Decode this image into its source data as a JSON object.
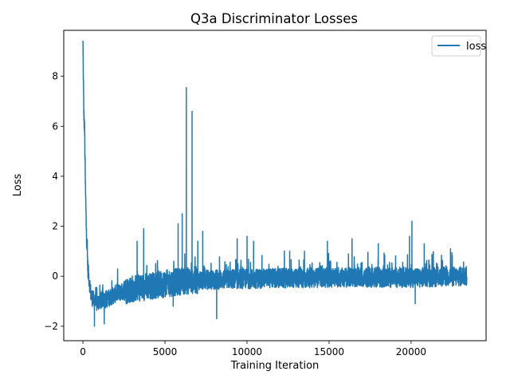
{
  "chart_data": {
    "type": "line",
    "title": "Q3a Discriminator Losses",
    "xlabel": "Training Iteration",
    "ylabel": "Loss",
    "xlim": [
      -1170,
      24570
    ],
    "ylim": [
      -2.58,
      9.84
    ],
    "x_ticks": [
      0,
      5000,
      10000,
      15000,
      20000
    ],
    "y_ticks": [
      -2,
      0,
      2,
      4,
      6,
      8
    ],
    "x_tick_labels": [
      "0",
      "5000",
      "10000",
      "15000",
      "20000"
    ],
    "y_tick_labels": [
      "−2",
      "0",
      "2",
      "4",
      "6",
      "8"
    ],
    "legend": "top-right",
    "grid": false,
    "series": [
      {
        "name": "loss",
        "color": "#1f77b4",
        "x_range": [
          0,
          23400
        ],
        "summary_points": [
          {
            "x": 0,
            "y": 9.3
          },
          {
            "x": 50,
            "y": 6.6
          },
          {
            "x": 100,
            "y": 5.8
          },
          {
            "x": 150,
            "y": 3.6
          },
          {
            "x": 200,
            "y": 2.0
          },
          {
            "x": 300,
            "y": 0.3
          },
          {
            "x": 500,
            "y": -0.8
          },
          {
            "x": 800,
            "y": -1.1
          },
          {
            "x": 1000,
            "y": -1.0
          },
          {
            "x": 1500,
            "y": -0.9
          },
          {
            "x": 2000,
            "y": -0.7
          },
          {
            "x": 3000,
            "y": -0.5
          },
          {
            "x": 4000,
            "y": -0.4
          },
          {
            "x": 5000,
            "y": -0.3
          },
          {
            "x": 6000,
            "y": -0.2
          },
          {
            "x": 7000,
            "y": -0.15
          },
          {
            "x": 10000,
            "y": -0.1
          },
          {
            "x": 15000,
            "y": -0.05
          },
          {
            "x": 20000,
            "y": -0.05
          },
          {
            "x": 23400,
            "y": 0.0
          }
        ],
        "spikes": [
          {
            "x": 6300,
            "y": 7.55
          },
          {
            "x": 6650,
            "y": 6.6
          },
          {
            "x": 6050,
            "y": 2.5
          },
          {
            "x": 5800,
            "y": 2.1
          },
          {
            "x": 3700,
            "y": 1.9
          },
          {
            "x": 3300,
            "y": 1.4
          },
          {
            "x": 7000,
            "y": 1.4
          },
          {
            "x": 7300,
            "y": 1.8
          },
          {
            "x": 9400,
            "y": 1.5
          },
          {
            "x": 10000,
            "y": 1.6
          },
          {
            "x": 10400,
            "y": 1.4
          },
          {
            "x": 12600,
            "y": 1.0
          },
          {
            "x": 13500,
            "y": 1.0
          },
          {
            "x": 14900,
            "y": 1.4
          },
          {
            "x": 16400,
            "y": 1.5
          },
          {
            "x": 18000,
            "y": 1.3
          },
          {
            "x": 19900,
            "y": 1.6
          },
          {
            "x": 20050,
            "y": 2.2
          },
          {
            "x": 20800,
            "y": 1.3
          },
          {
            "x": 22400,
            "y": 1.1
          },
          {
            "x": 8150,
            "y": -1.7
          },
          {
            "x": 20250,
            "y": -1.1
          },
          {
            "x": 5500,
            "y": -1.2
          },
          {
            "x": 700,
            "y": -2.0
          },
          {
            "x": 1300,
            "y": -1.9
          }
        ]
      }
    ]
  }
}
